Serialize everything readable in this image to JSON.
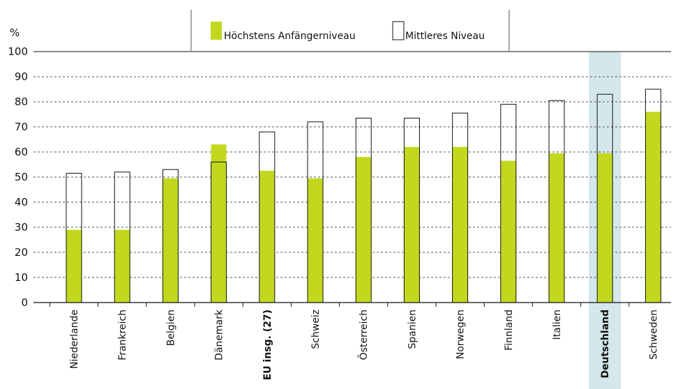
{
  "chart_data": {
    "type": "bar",
    "ylabel": "%",
    "ylim": [
      0,
      100
    ],
    "yticks": [
      0,
      10,
      20,
      30,
      40,
      50,
      60,
      70,
      80,
      90,
      100
    ],
    "grid": true,
    "legend_position": "top",
    "categories": [
      "Niederlande",
      "Frankreich",
      "Belgien",
      "Dänemark",
      "EU insg. (27)",
      "Schweiz",
      "Österreich",
      "Spanien",
      "Norwegen",
      "Finnland",
      "Italien",
      "Deutschland",
      "Schweden"
    ],
    "highlighted_categories": {
      "EU insg. (27)": {
        "style": "bold",
        "color": "#1b75bb"
      },
      "Deutschland": {
        "style": "bold",
        "color": "#000000",
        "background": "#d4e7ec"
      }
    },
    "series": [
      {
        "name": "Höchstens Anfängerniveau",
        "color": "#c2d81e",
        "values": [
          29,
          29,
          49.5,
          63,
          52.5,
          49.5,
          58,
          62,
          62,
          56.5,
          59.5,
          59.5,
          76
        ]
      },
      {
        "name": "Mittleres Niveau",
        "color": "#ffffff",
        "values": [
          51.5,
          52,
          53,
          56,
          68,
          72,
          73.5,
          73.5,
          75.5,
          79,
          80.5,
          83,
          85
        ]
      }
    ]
  }
}
